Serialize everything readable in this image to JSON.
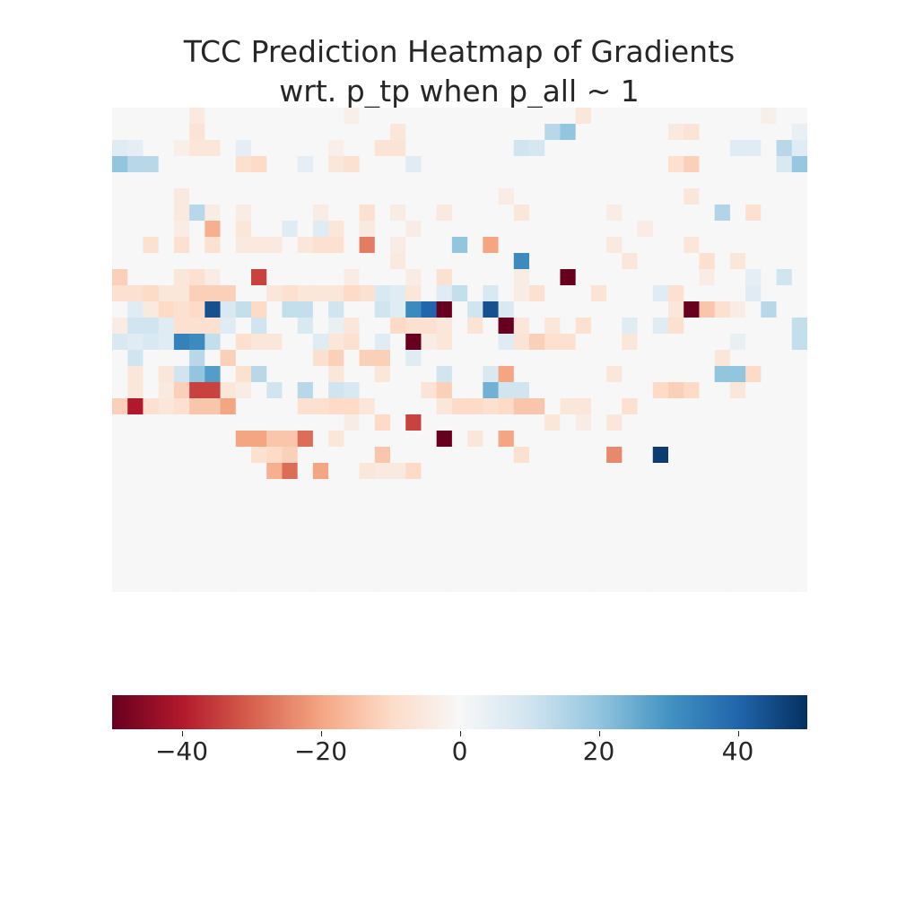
{
  "chart_data": {
    "type": "heatmap",
    "title_line1": "TCC Prediction Heatmap of Gradients",
    "title_line2": "wrt. p_tp when p_all ~ 1",
    "xlabel": "",
    "ylabel": "",
    "colormap": "RdBu",
    "vmin": -50,
    "vmax": 50,
    "colorbar_ticks": [
      -40,
      -20,
      0,
      20,
      40
    ],
    "colorbar_tick_labels": [
      "−40",
      "−20",
      "0",
      "20",
      "40"
    ],
    "grid": false,
    "rows": 30,
    "cols": 45,
    "values": [
      [
        0,
        0,
        0,
        0,
        0,
        -5,
        0,
        0,
        0,
        0,
        0,
        0,
        0,
        0,
        0,
        -3,
        0,
        0,
        0,
        0,
        0,
        0,
        0,
        0,
        0,
        0,
        0,
        0,
        0,
        0,
        -6,
        0,
        0,
        0,
        0,
        0,
        0,
        0,
        0,
        0,
        0,
        0,
        -3,
        0,
        0
      ],
      [
        0,
        0,
        0,
        0,
        0,
        -7,
        0,
        0,
        0,
        0,
        0,
        0,
        0,
        0,
        0,
        0,
        0,
        0,
        -6,
        0,
        0,
        0,
        0,
        0,
        0,
        0,
        0,
        0,
        14,
        20,
        0,
        0,
        0,
        0,
        0,
        0,
        -5,
        -7,
        0,
        0,
        0,
        0,
        0,
        0,
        4
      ],
      [
        6,
        5,
        0,
        0,
        -3,
        -6,
        -6,
        0,
        5,
        0,
        0,
        0,
        0,
        0,
        -3,
        0,
        0,
        -7,
        -7,
        0,
        0,
        0,
        0,
        0,
        0,
        0,
        10,
        9,
        0,
        0,
        0,
        0,
        0,
        0,
        0,
        0,
        0,
        0,
        0,
        0,
        6,
        6,
        0,
        14,
        6
      ],
      [
        20,
        14,
        14,
        0,
        0,
        0,
        0,
        0,
        -8,
        -10,
        0,
        0,
        5,
        0,
        -6,
        -8,
        0,
        0,
        0,
        6,
        0,
        0,
        0,
        0,
        0,
        0,
        0,
        0,
        0,
        0,
        0,
        0,
        0,
        0,
        0,
        0,
        -8,
        -12,
        0,
        0,
        0,
        0,
        0,
        8,
        19
      ],
      [
        0,
        0,
        0,
        0,
        0,
        0,
        0,
        0,
        0,
        0,
        0,
        0,
        0,
        0,
        0,
        0,
        0,
        0,
        0,
        0,
        0,
        0,
        0,
        0,
        0,
        0,
        0,
        0,
        0,
        0,
        0,
        0,
        0,
        0,
        0,
        0,
        0,
        0,
        0,
        0,
        0,
        0,
        0,
        0,
        0
      ],
      [
        0,
        0,
        0,
        0,
        -5,
        0,
        0,
        0,
        0,
        0,
        0,
        0,
        0,
        0,
        0,
        0,
        0,
        0,
        0,
        0,
        0,
        0,
        0,
        0,
        0,
        -4,
        0,
        0,
        0,
        0,
        0,
        0,
        0,
        0,
        0,
        0,
        0,
        -6,
        0,
        0,
        0,
        0,
        0,
        0,
        0
      ],
      [
        0,
        0,
        0,
        0,
        -5,
        14,
        -4,
        0,
        -4,
        0,
        0,
        0,
        0,
        -4,
        0,
        0,
        -8,
        0,
        -4,
        0,
        0,
        -5,
        0,
        0,
        0,
        0,
        -6,
        0,
        0,
        0,
        0,
        0,
        -4,
        0,
        0,
        0,
        0,
        0,
        0,
        15,
        0,
        -8,
        0,
        0,
        0
      ],
      [
        0,
        0,
        0,
        0,
        -4,
        0,
        -18,
        0,
        -6,
        0,
        0,
        6,
        0,
        6,
        -6,
        0,
        -5,
        0,
        0,
        -4,
        0,
        0,
        0,
        0,
        0,
        0,
        0,
        0,
        0,
        0,
        0,
        0,
        0,
        0,
        -4,
        0,
        0,
        0,
        0,
        0,
        0,
        0,
        0,
        0,
        0
      ],
      [
        0,
        0,
        -8,
        0,
        -8,
        0,
        -8,
        0,
        -5,
        -5,
        -5,
        0,
        -6,
        -8,
        -8,
        0,
        -26,
        0,
        -4,
        0,
        0,
        0,
        20,
        0,
        -20,
        0,
        0,
        0,
        0,
        0,
        0,
        0,
        -5,
        0,
        0,
        0,
        0,
        -6,
        0,
        0,
        0,
        0,
        0,
        0,
        0
      ],
      [
        0,
        0,
        0,
        0,
        0,
        0,
        0,
        0,
        0,
        0,
        0,
        0,
        0,
        0,
        0,
        0,
        0,
        0,
        -5,
        0,
        0,
        0,
        0,
        0,
        0,
        0,
        32,
        0,
        0,
        0,
        0,
        0,
        0,
        -6,
        0,
        0,
        0,
        0,
        -8,
        0,
        -6,
        0,
        0,
        0,
        0
      ],
      [
        -12,
        0,
        0,
        0,
        -6,
        -8,
        -4,
        0,
        0,
        -34,
        0,
        0,
        0,
        0,
        0,
        -4,
        0,
        0,
        0,
        -4,
        0,
        -8,
        0,
        0,
        0,
        0,
        -4,
        0,
        0,
        -50,
        0,
        0,
        0,
        0,
        0,
        0,
        0,
        0,
        -4,
        0,
        0,
        5,
        0,
        10,
        0
      ],
      [
        -8,
        -8,
        -10,
        -6,
        -6,
        -12,
        -12,
        -12,
        0,
        0,
        -6,
        -8,
        -6,
        -6,
        -6,
        -10,
        -8,
        8,
        6,
        -6,
        0,
        6,
        12,
        0,
        8,
        0,
        -4,
        -8,
        0,
        0,
        0,
        -7,
        0,
        0,
        0,
        6,
        -8,
        0,
        0,
        0,
        0,
        6,
        0,
        0,
        0
      ],
      [
        0,
        6,
        -5,
        -10,
        -8,
        -10,
        44,
        8,
        12,
        -10,
        0,
        12,
        12,
        0,
        10,
        0,
        0,
        10,
        6,
        32,
        40,
        -50,
        0,
        10,
        44,
        8,
        0,
        0,
        0,
        0,
        0,
        0,
        0,
        0,
        0,
        0,
        -6,
        -50,
        -14,
        -8,
        -4,
        0,
        14,
        0,
        0
      ],
      [
        -4,
        10,
        10,
        6,
        -8,
        -8,
        -8,
        6,
        0,
        10,
        0,
        0,
        8,
        0,
        4,
        -6,
        0,
        0,
        -10,
        -8,
        -8,
        -6,
        0,
        -7,
        0,
        -50,
        -6,
        0,
        -6,
        0,
        -8,
        0,
        0,
        6,
        0,
        6,
        -8,
        0,
        0,
        0,
        0,
        0,
        0,
        0,
        12
      ],
      [
        8,
        6,
        8,
        6,
        34,
        32,
        12,
        0,
        -8,
        -6,
        -6,
        0,
        0,
        6,
        -6,
        -8,
        0,
        6,
        0,
        -50,
        -4,
        -6,
        0,
        0,
        0,
        6,
        -7,
        -12,
        -8,
        -8,
        0,
        0,
        0,
        -6,
        0,
        0,
        0,
        0,
        0,
        0,
        4,
        0,
        0,
        0,
        12
      ],
      [
        0,
        10,
        0,
        0,
        0,
        14,
        0,
        -12,
        0,
        0,
        0,
        0,
        0,
        -8,
        -12,
        0,
        -12,
        -12,
        0,
        6,
        0,
        0,
        0,
        0,
        0,
        0,
        0,
        0,
        0,
        0,
        0,
        0,
        0,
        0,
        0,
        0,
        0,
        0,
        0,
        -6,
        0,
        0,
        0,
        0,
        0
      ],
      [
        0,
        -6,
        0,
        -6,
        10,
        20,
        28,
        0,
        -8,
        14,
        0,
        0,
        0,
        0,
        -6,
        0,
        0,
        -6,
        0,
        0,
        0,
        10,
        0,
        0,
        8,
        -20,
        0,
        0,
        0,
        0,
        0,
        0,
        -6,
        0,
        0,
        0,
        0,
        0,
        0,
        20,
        20,
        -10,
        0,
        0,
        0
      ],
      [
        0,
        -6,
        0,
        -5,
        -12,
        -34,
        -34,
        -6,
        -4,
        0,
        10,
        0,
        14,
        0,
        10,
        8,
        0,
        0,
        0,
        0,
        -7,
        -12,
        0,
        0,
        24,
        10,
        10,
        0,
        0,
        0,
        0,
        0,
        0,
        0,
        0,
        -10,
        -12,
        -10,
        0,
        0,
        -6,
        0,
        0,
        0,
        0
      ],
      [
        -12,
        -40,
        -8,
        -6,
        -8,
        -14,
        -14,
        -20,
        0,
        0,
        0,
        0,
        -8,
        -8,
        -10,
        -10,
        -6,
        0,
        0,
        0,
        0,
        -6,
        -10,
        -10,
        -8,
        -10,
        -14,
        -14,
        0,
        -6,
        -6,
        0,
        0,
        -8,
        0,
        0,
        0,
        0,
        0,
        0,
        0,
        0,
        0,
        0,
        0
      ],
      [
        0,
        0,
        0,
        0,
        0,
        0,
        0,
        0,
        0,
        0,
        0,
        0,
        0,
        0,
        0,
        -4,
        0,
        -10,
        0,
        -34,
        0,
        0,
        0,
        0,
        0,
        0,
        0,
        0,
        -6,
        0,
        -4,
        0,
        -6,
        0,
        0,
        0,
        0,
        0,
        0,
        0,
        0,
        0,
        0,
        0,
        0
      ],
      [
        0,
        0,
        0,
        0,
        0,
        0,
        0,
        0,
        -20,
        -20,
        -14,
        -14,
        -28,
        0,
        -6,
        0,
        0,
        0,
        0,
        0,
        0,
        -50,
        0,
        -6,
        0,
        -20,
        0,
        0,
        0,
        0,
        0,
        0,
        0,
        0,
        0,
        0,
        0,
        0,
        0,
        0,
        0,
        0,
        0,
        0,
        0
      ],
      [
        0,
        0,
        0,
        0,
        0,
        0,
        0,
        0,
        0,
        -8,
        -10,
        -12,
        0,
        0,
        0,
        0,
        0,
        -14,
        0,
        0,
        0,
        0,
        0,
        0,
        0,
        0,
        -8,
        0,
        0,
        0,
        0,
        0,
        -24,
        0,
        0,
        48,
        0,
        0,
        0,
        0,
        0,
        0,
        0,
        0,
        0
      ],
      [
        0,
        0,
        0,
        0,
        0,
        0,
        0,
        0,
        0,
        0,
        -18,
        -28,
        0,
        -20,
        0,
        0,
        -6,
        -5,
        -5,
        -10,
        0,
        0,
        0,
        0,
        0,
        0,
        0,
        0,
        0,
        0,
        0,
        0,
        0,
        0,
        0,
        0,
        0,
        0,
        0,
        0,
        0,
        0,
        0,
        0,
        0
      ],
      [
        0,
        0,
        0,
        0,
        0,
        0,
        0,
        0,
        0,
        0,
        0,
        0,
        0,
        0,
        0,
        0,
        0,
        0,
        0,
        0,
        0,
        0,
        0,
        0,
        0,
        0,
        0,
        0,
        0,
        0,
        0,
        0,
        0,
        0,
        0,
        0,
        0,
        0,
        0,
        0,
        0,
        0,
        0,
        0,
        0
      ],
      [
        0,
        0,
        0,
        0,
        0,
        0,
        0,
        0,
        0,
        0,
        0,
        0,
        0,
        0,
        0,
        0,
        0,
        0,
        0,
        0,
        0,
        0,
        0,
        0,
        0,
        0,
        0,
        0,
        0,
        0,
        0,
        0,
        0,
        0,
        0,
        0,
        0,
        0,
        0,
        0,
        0,
        0,
        0,
        0,
        0
      ],
      [
        0,
        0,
        0,
        0,
        0,
        0,
        0,
        0,
        0,
        0,
        0,
        0,
        0,
        0,
        0,
        0,
        0,
        0,
        0,
        0,
        0,
        0,
        0,
        0,
        0,
        0,
        0,
        0,
        0,
        0,
        0,
        0,
        0,
        0,
        0,
        0,
        0,
        0,
        0,
        0,
        0,
        0,
        0,
        0,
        0
      ],
      [
        0,
        0,
        0,
        0,
        0,
        0,
        0,
        0,
        0,
        0,
        0,
        0,
        0,
        0,
        0,
        0,
        0,
        0,
        0,
        0,
        0,
        0,
        0,
        0,
        0,
        0,
        0,
        0,
        0,
        0,
        0,
        0,
        0,
        0,
        0,
        0,
        0,
        0,
        0,
        0,
        0,
        0,
        0,
        0,
        0
      ],
      [
        0,
        0,
        0,
        0,
        0,
        0,
        0,
        0,
        0,
        0,
        0,
        0,
        0,
        0,
        0,
        0,
        0,
        0,
        0,
        0,
        0,
        0,
        0,
        0,
        0,
        0,
        0,
        0,
        0,
        0,
        0,
        0,
        0,
        0,
        0,
        0,
        0,
        0,
        0,
        0,
        0,
        0,
        0,
        0,
        0
      ],
      [
        0,
        0,
        0,
        0,
        0,
        0,
        0,
        0,
        0,
        0,
        0,
        0,
        0,
        0,
        0,
        0,
        0,
        0,
        0,
        0,
        0,
        0,
        0,
        0,
        0,
        0,
        0,
        0,
        0,
        0,
        0,
        0,
        0,
        0,
        0,
        0,
        0,
        0,
        0,
        0,
        0,
        0,
        0,
        0,
        0
      ],
      [
        0,
        0,
        0,
        0,
        0,
        0,
        0,
        0,
        0,
        0,
        0,
        0,
        0,
        0,
        0,
        0,
        0,
        0,
        0,
        0,
        0,
        0,
        0,
        0,
        0,
        0,
        0,
        0,
        0,
        0,
        0,
        0,
        0,
        0,
        0,
        0,
        0,
        0,
        0,
        0,
        0,
        0,
        0,
        0,
        0
      ]
    ]
  }
}
